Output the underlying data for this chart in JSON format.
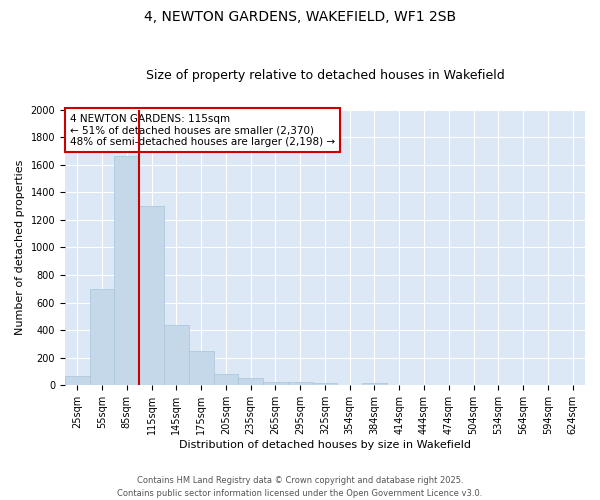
{
  "title": "4, NEWTON GARDENS, WAKEFIELD, WF1 2SB",
  "subtitle": "Size of property relative to detached houses in Wakefield",
  "xlabel": "Distribution of detached houses by size in Wakefield",
  "ylabel": "Number of detached properties",
  "categories": [
    "25sqm",
    "55sqm",
    "85sqm",
    "115sqm",
    "145sqm",
    "175sqm",
    "205sqm",
    "235sqm",
    "265sqm",
    "295sqm",
    "325sqm",
    "354sqm",
    "384sqm",
    "414sqm",
    "444sqm",
    "474sqm",
    "504sqm",
    "534sqm",
    "564sqm",
    "594sqm",
    "624sqm"
  ],
  "values": [
    65,
    700,
    1660,
    1300,
    440,
    250,
    85,
    50,
    25,
    25,
    20,
    0,
    15,
    0,
    0,
    0,
    0,
    0,
    0,
    0,
    0
  ],
  "bar_color": "#c5d8ea",
  "bar_edge_color": "#a8c4dc",
  "vline_color": "#cc0000",
  "vline_index": 2.5,
  "annotation_text": "4 NEWTON GARDENS: 115sqm\n← 51% of detached houses are smaller (2,370)\n48% of semi-detached houses are larger (2,198) →",
  "annotation_box_facecolor": "white",
  "annotation_box_edgecolor": "#cc0000",
  "ylim": [
    0,
    2000
  ],
  "yticks": [
    0,
    200,
    400,
    600,
    800,
    1000,
    1200,
    1400,
    1600,
    1800,
    2000
  ],
  "figure_bg": "white",
  "plot_bg": "#dce8f5",
  "grid_color": "white",
  "footer_text": "Contains HM Land Registry data © Crown copyright and database right 2025.\nContains public sector information licensed under the Open Government Licence v3.0.",
  "title_fontsize": 10,
  "subtitle_fontsize": 9,
  "xlabel_fontsize": 8,
  "ylabel_fontsize": 8,
  "tick_fontsize": 7,
  "annotation_fontsize": 7.5,
  "footer_fontsize": 6
}
